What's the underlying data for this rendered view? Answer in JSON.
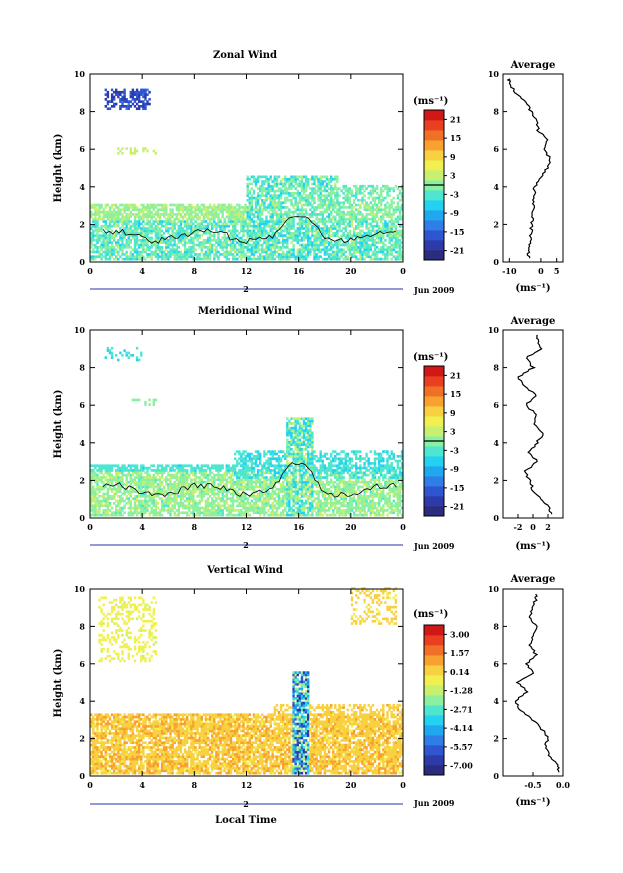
{
  "figure": {
    "date_label": "Jun 2009",
    "day_label": "2",
    "xlabel": "Local Time",
    "avg_title": "Average",
    "unit_label": "(ms⁻¹)",
    "cmap": [
      "#2c2c7e",
      "#2d3aa8",
      "#2f55d0",
      "#2f7ee6",
      "#1fa8f0",
      "#22d2f0",
      "#4fe6d0",
      "#8cf0a0",
      "#c8f070",
      "#f0f050",
      "#f8d040",
      "#f8a030",
      "#f07028",
      "#e84020",
      "#d01818"
    ]
  },
  "chart_data": [
    {
      "type": "heatmap",
      "name": "zonal",
      "title": "Zonal Wind",
      "xlabel": "",
      "ylabel": "Height (km)",
      "xlim": [
        0,
        24
      ],
      "ylim": [
        0,
        10
      ],
      "xticks": [
        "0",
        "4",
        "8",
        "12",
        "16",
        "20",
        "0"
      ],
      "yticks": [
        "0",
        "2",
        "4",
        "6",
        "8",
        "10"
      ],
      "colorbar": {
        "label": "(ms⁻¹)",
        "ticks": [
          "21",
          "15",
          "9",
          "3",
          "-3",
          "-9",
          "-15",
          "-21"
        ],
        "range": [
          -24,
          24
        ],
        "contour_value": 0
      },
      "average": {
        "title": "Average",
        "xlim": [
          -12,
          7
        ],
        "xticks": [
          "-10",
          "0",
          "5"
        ],
        "xlabel": "(ms⁻¹)",
        "heights": [
          0.2,
          0.6,
          1.0,
          1.5,
          2.0,
          2.5,
          3.0,
          3.5,
          4.0,
          4.5,
          5.0,
          5.5,
          6.0,
          6.5,
          7.0,
          7.5,
          8.0,
          8.5,
          9.0,
          9.5
        ],
        "values": [
          -4,
          -4,
          -3.5,
          -3,
          -3,
          -2.5,
          -2.5,
          -2,
          -2,
          0,
          2,
          3,
          1,
          2,
          -1,
          -1,
          -3,
          -5,
          -8,
          -10
        ]
      }
    },
    {
      "type": "heatmap",
      "name": "meridional",
      "title": "Meridional Wind",
      "xlabel": "",
      "ylabel": "Height (km)",
      "xlim": [
        0,
        24
      ],
      "ylim": [
        0,
        10
      ],
      "xticks": [
        "0",
        "4",
        "8",
        "12",
        "16",
        "20",
        "0"
      ],
      "yticks": [
        "0",
        "2",
        "4",
        "6",
        "8",
        "10"
      ],
      "colorbar": {
        "label": "(ms⁻¹)",
        "ticks": [
          "21",
          "15",
          "9",
          "3",
          "-3",
          "-9",
          "-15",
          "-21"
        ],
        "range": [
          -24,
          24
        ],
        "contour_value": 0
      },
      "average": {
        "title": "Average",
        "xlim": [
          -4,
          4
        ],
        "xticks": [
          "-2",
          "0",
          "2"
        ],
        "xlabel": "(ms⁻¹)",
        "heights": [
          0.2,
          0.6,
          1.0,
          1.5,
          2.0,
          2.5,
          3.0,
          3.5,
          4.0,
          4.5,
          5.0,
          5.5,
          6.0,
          6.5,
          7.0,
          7.5,
          8.0,
          8.5,
          9.0,
          9.5
        ],
        "values": [
          2.5,
          2,
          1,
          0,
          -0.5,
          -1,
          0.5,
          -0.5,
          0.5,
          1.5,
          0,
          0.5,
          -1,
          0.5,
          -1,
          -2,
          0,
          -1,
          1,
          0.5
        ]
      }
    },
    {
      "type": "heatmap",
      "name": "vertical",
      "title": "Vertical Wind",
      "xlabel": "Local Time",
      "ylabel": "Height (km)",
      "xlim": [
        0,
        24
      ],
      "ylim": [
        0,
        10
      ],
      "xticks": [
        "0",
        "4",
        "8",
        "12",
        "16",
        "20",
        "0"
      ],
      "yticks": [
        "0",
        "2",
        "4",
        "6",
        "8",
        "10"
      ],
      "colorbar": {
        "label": "(ms⁻¹)",
        "ticks": [
          "3.00",
          "1.57",
          "0.14",
          "-1.28",
          "-2.71",
          "-4.14",
          "-5.57",
          "-7.00"
        ],
        "range": [
          -7.7,
          3.7
        ]
      },
      "average": {
        "title": "Average",
        "xlim": [
          -1.0,
          0.0
        ],
        "xticks": [
          "-0.5",
          "0.0"
        ],
        "xlabel": "(ms⁻¹)",
        "heights": [
          0.2,
          0.6,
          1.0,
          1.5,
          2.0,
          2.5,
          3.0,
          3.5,
          4.0,
          4.5,
          5.0,
          5.5,
          6.0,
          6.5,
          7.0,
          7.5,
          8.0,
          8.5,
          9.0,
          9.5
        ],
        "values": [
          -0.05,
          -0.1,
          -0.2,
          -0.3,
          -0.25,
          -0.35,
          -0.5,
          -0.7,
          -0.8,
          -0.6,
          -0.75,
          -0.5,
          -0.6,
          -0.45,
          -0.55,
          -0.5,
          -0.45,
          -0.55,
          -0.5,
          -0.45
        ]
      }
    }
  ]
}
